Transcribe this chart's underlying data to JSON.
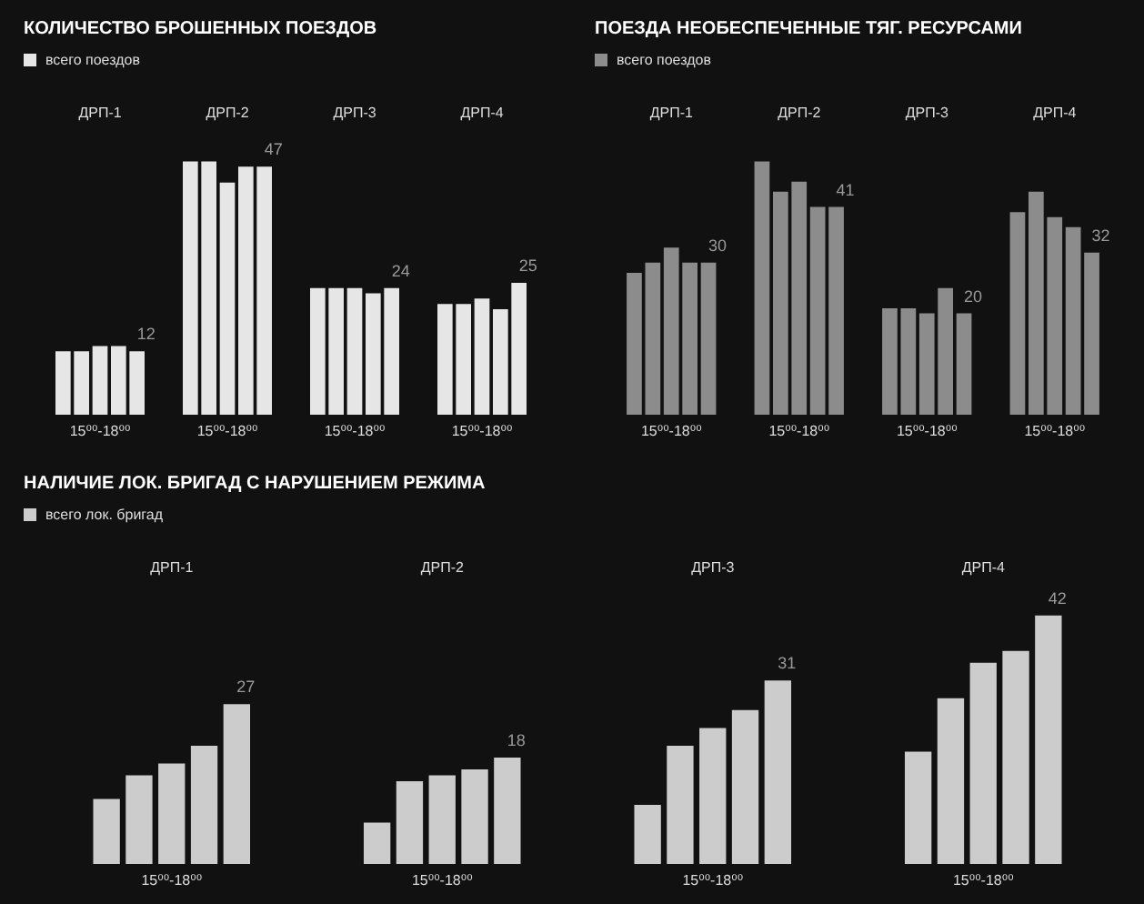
{
  "chart_data": [
    {
      "type": "bar",
      "title": "КОЛИЧЕСТВО БРОШЕННЫХ ПОЕЗДОВ",
      "legend": "top left",
      "categories": [
        "ДРП-1",
        "ДРП-2",
        "ДРП-3",
        "ДРП-4"
      ],
      "annotations": [
        "15⁰⁰-18⁰⁰",
        "15⁰⁰-18⁰⁰",
        "15⁰⁰-18⁰⁰",
        "15⁰⁰-18⁰⁰"
      ],
      "series": [
        {
          "name": "всего поездов",
          "color": "#e6e6e6",
          "values": [
            12,
            48,
            24,
            21
          ]
        },
        {
          "color": "#e6e6e6",
          "values": [
            12,
            48,
            24,
            21
          ]
        },
        {
          "color": "#e6e6e6",
          "values": [
            13,
            44,
            24,
            22
          ]
        },
        {
          "color": "#e6e6e6",
          "values": [
            13,
            47,
            23,
            20
          ]
        },
        {
          "color": "#e6e6e6",
          "values": [
            12,
            47,
            24,
            25
          ],
          "value_labels": [
            "12",
            "47",
            "24",
            "25"
          ]
        }
      ]
    },
    {
      "type": "bar",
      "title": "ПОЕЗДА НЕОБЕСПЕЧЕННЫЕ ТЯГ. РЕСУРСАМИ",
      "legend": "top left",
      "categories": [
        "ДРП-1",
        "ДРП-2",
        "ДРП-3",
        "ДРП-4"
      ],
      "annotations": [
        "15⁰⁰-18⁰⁰",
        "15⁰⁰-18⁰⁰",
        "15⁰⁰-18⁰⁰",
        "15⁰⁰-18⁰⁰"
      ],
      "series": [
        {
          "name": "всего поездов",
          "color": "#8c8c8c",
          "values": [
            28,
            50,
            21,
            40
          ]
        },
        {
          "color": "#8c8c8c",
          "values": [
            30,
            44,
            21,
            44
          ]
        },
        {
          "color": "#8c8c8c",
          "values": [
            33,
            46,
            20,
            39
          ]
        },
        {
          "color": "#8c8c8c",
          "values": [
            30,
            41,
            25,
            37
          ]
        },
        {
          "color": "#8c8c8c",
          "values": [
            30,
            41,
            20,
            32
          ],
          "value_labels": [
            "30",
            "41",
            "20",
            "32"
          ]
        }
      ]
    },
    {
      "type": "bar",
      "title": "НАЛИЧИЕ ЛОК. БРИГАД С НАРУШЕНИЕМ РЕЖИМА",
      "legend": "top left",
      "categories": [
        "ДРП-1",
        "ДРП-2",
        "ДРП-3",
        "ДРП-4"
      ],
      "annotations": [
        "15⁰⁰-18⁰⁰",
        "15⁰⁰-18⁰⁰",
        "15⁰⁰-18⁰⁰",
        "15⁰⁰-18⁰⁰"
      ],
      "series": [
        {
          "name": "всего лок. бригад",
          "color": "#cccccc",
          "values": [
            11,
            7,
            10,
            19
          ]
        },
        {
          "color": "#cccccc",
          "values": [
            15,
            14,
            20,
            28
          ]
        },
        {
          "color": "#cccccc",
          "values": [
            17,
            15,
            23,
            34
          ]
        },
        {
          "color": "#cccccc",
          "values": [
            20,
            16,
            26,
            36
          ]
        },
        {
          "color": "#cccccc",
          "values": [
            27,
            18,
            31,
            42
          ],
          "value_labels": [
            "27",
            "18",
            "31",
            "42"
          ]
        }
      ]
    }
  ]
}
